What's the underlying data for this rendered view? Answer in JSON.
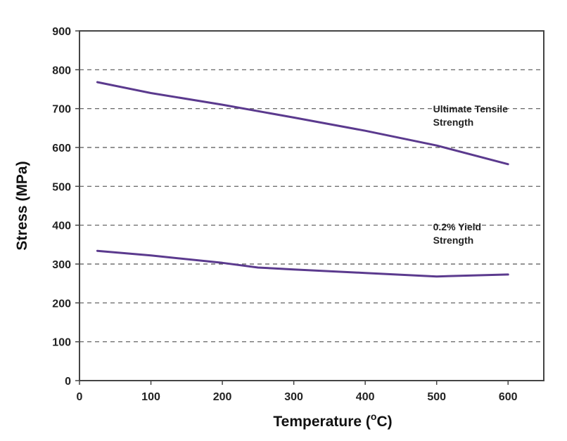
{
  "chart_data": {
    "type": "line",
    "title": "",
    "xlabel": "Temperature (",
    "xlabel_sup": "o",
    "xlabel_end": "C)",
    "ylabel": "Stress (MPa)",
    "xlim": [
      0,
      650
    ],
    "ylim": [
      0,
      900
    ],
    "x_ticks": [
      0,
      100,
      200,
      300,
      400,
      500,
      600
    ],
    "y_ticks": [
      0,
      100,
      200,
      300,
      400,
      500,
      600,
      700,
      800,
      900
    ],
    "grid": "horizontal dashed",
    "line_color": "#5b3a8e",
    "series": [
      {
        "name": "Ultimate Tensile Strength",
        "label_lines": [
          "Ultimate Tensile",
          "Strength"
        ],
        "x": [
          25,
          100,
          200,
          300,
          400,
          500,
          600
        ],
        "y": [
          768,
          740,
          710,
          677,
          643,
          605,
          557
        ]
      },
      {
        "name": "0.2% Yield Strength",
        "label_lines": [
          "0.2% Yield",
          "Strength"
        ],
        "x": [
          25,
          100,
          200,
          250,
          300,
          400,
          500,
          600
        ],
        "y": [
          334,
          322,
          303,
          291,
          286,
          277,
          268,
          273
        ]
      }
    ]
  }
}
